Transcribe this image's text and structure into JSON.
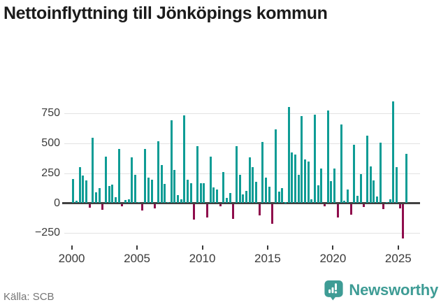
{
  "title": "Nettoinflyttning till Jönköpings kommun",
  "source": "Källa: SCB",
  "logo": {
    "text": "Newsworthy",
    "color": "#3E9C95",
    "icon": "newsworthy-speech-bubble-chart-icon"
  },
  "colors": {
    "positive_bar": "#0E9C95",
    "negative_bar": "#8F0D4C",
    "grid": "#e2e2e2",
    "zero_line": "#414141",
    "axis_text": "#3a3a3a",
    "title_text": "#1b1b1b",
    "source_text": "#757575"
  },
  "chart_data": {
    "type": "bar",
    "title": "Nettoinflyttning till Jönköpings kommun",
    "xlabel": "",
    "ylabel": "",
    "x_start": "2000-Q1",
    "frequency": "quarterly",
    "x_ticks": [
      2000,
      2005,
      2010,
      2015,
      2020,
      2025
    ],
    "y_ticks": [
      -250,
      0,
      250,
      500,
      750
    ],
    "ylim": [
      -310,
      900
    ],
    "grid": "horizontal",
    "legend": "none",
    "values": [
      200,
      20,
      300,
      230,
      190,
      -30,
      545,
      90,
      125,
      -45,
      390,
      145,
      155,
      50,
      455,
      -20,
      25,
      35,
      385,
      240,
      10,
      -50,
      455,
      215,
      195,
      -35,
      520,
      318,
      160,
      10,
      693,
      277,
      65,
      30,
      736,
      195,
      165,
      -130,
      475,
      165,
      165,
      -110,
      390,
      130,
      115,
      -15,
      260,
      45,
      85,
      -125,
      475,
      235,
      75,
      105,
      385,
      300,
      180,
      -95,
      515,
      215,
      135,
      -165,
      615,
      95,
      125,
      5,
      805,
      425,
      405,
      240,
      730,
      365,
      350,
      35,
      740,
      150,
      290,
      -15,
      775,
      185,
      290,
      -110,
      660,
      20,
      115,
      -90,
      490,
      60,
      245,
      -25,
      565,
      305,
      190,
      55,
      505,
      -40,
      10,
      30,
      850,
      300,
      -35,
      -285,
      410
    ]
  }
}
